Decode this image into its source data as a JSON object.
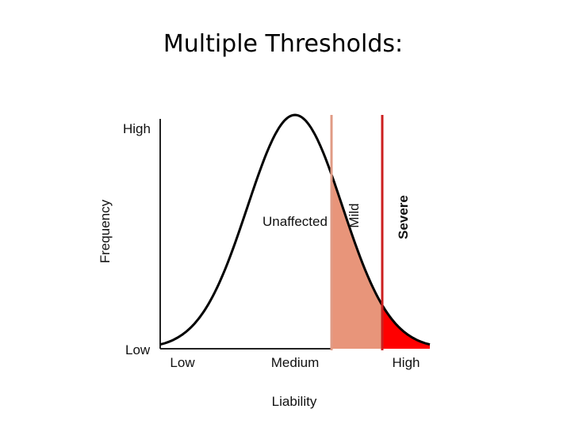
{
  "title": "Multiple Thresholds:",
  "diagram": {
    "y_axis_label": "Frequency",
    "y_high_label": "High",
    "y_low_label": "Low",
    "x_axis_label": "Liability",
    "x_ticks": [
      "Low",
      "Medium",
      "High"
    ],
    "region_label": "Unaffected",
    "thresholds": [
      {
        "label": "Mild",
        "color": "#e09b85"
      },
      {
        "label": "Severe",
        "color": "#cc1f1f"
      }
    ],
    "fill_colors": {
      "mild_region": "#e8957a",
      "severe_region": "#ff0000"
    }
  }
}
